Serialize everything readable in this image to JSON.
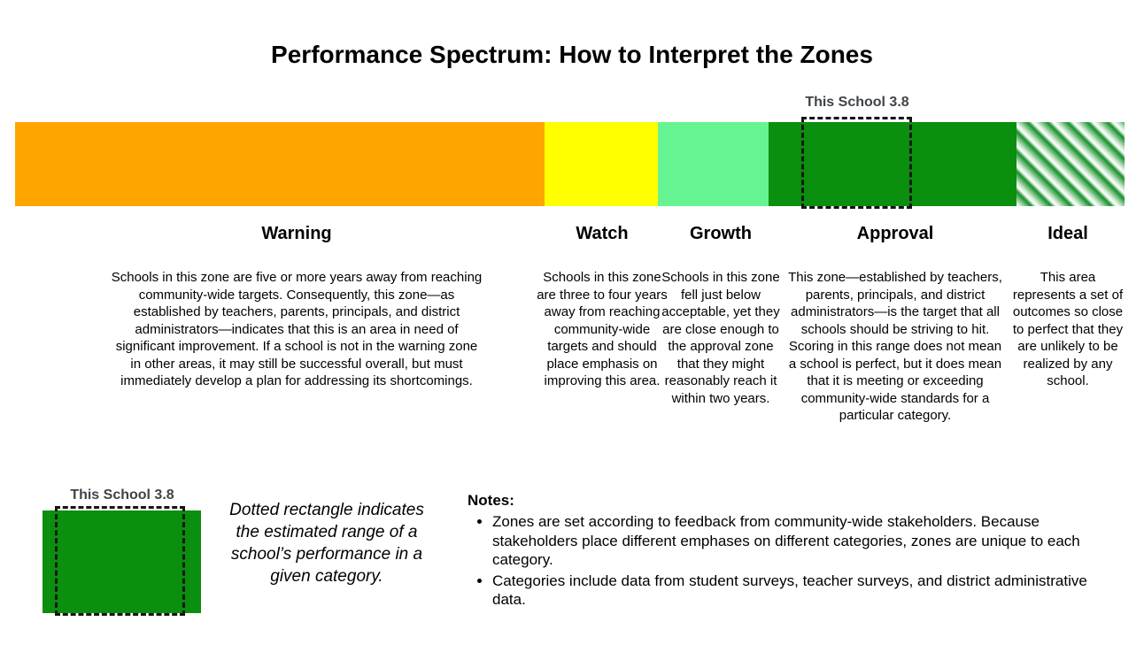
{
  "title": "Performance Spectrum: How to Interpret the Zones",
  "colors": {
    "warning": "#FFA500",
    "watch": "#FFFF00",
    "growth": "#66F492",
    "approval": "#0A8F0E",
    "ideal_stripe_green": "#15902A",
    "marker_label_text": "#3F4449"
  },
  "bar_marker": {
    "label": "This School 3.8",
    "zone": "Approval"
  },
  "zones": [
    {
      "name": "Warning",
      "color": "#FFA500",
      "description": "Schools in this zone are five or more years away from reaching community-wide targets. Consequently, this zone—as established by teachers, parents, principals, and district administrators—indicates that this is an area in need of significant improvement. If a school is not in the warning zone in other areas, it may still be successful overall, but must immediately develop a plan for addressing its shortcomings."
    },
    {
      "name": "Watch",
      "color": "#FFFF00",
      "description": "Schools in this zone are three to four years away from reaching community-wide targets and should place emphasis on improving this area."
    },
    {
      "name": "Growth",
      "color": "#66F492",
      "description": "Schools in this zone fell just below acceptable, yet they are close enough to the approval zone that they might reasonably reach it within two years."
    },
    {
      "name": "Approval",
      "color": "#0A8F0E",
      "description": "This zone—established by teachers, parents, principals, and district administrators—is the target that all schools should be striving to hit. Scoring in this range does not mean a school is perfect, but it does mean that it is meeting or exceeding community-wide standards for a particular category."
    },
    {
      "name": "Ideal",
      "color": "#0A8F0E",
      "pattern": "diagonal-gradient-stripes",
      "description": "This area represents a set of outcomes so close to perfect that they are unlikely to be realized by any school."
    }
  ],
  "legend": {
    "marker_label": "This School 3.8",
    "swatch_color": "#0A8F0E",
    "caption": "Dotted rectangle indicates the estimated range of a school’s performance in a given category."
  },
  "notes": {
    "heading": "Notes:",
    "items": [
      "Zones are set according to feedback from community-wide stakeholders. Because stakeholders place different emphases on different categories, zones are unique to each category.",
      "Categories include data from student surveys, teacher surveys, and district administrative data."
    ]
  }
}
